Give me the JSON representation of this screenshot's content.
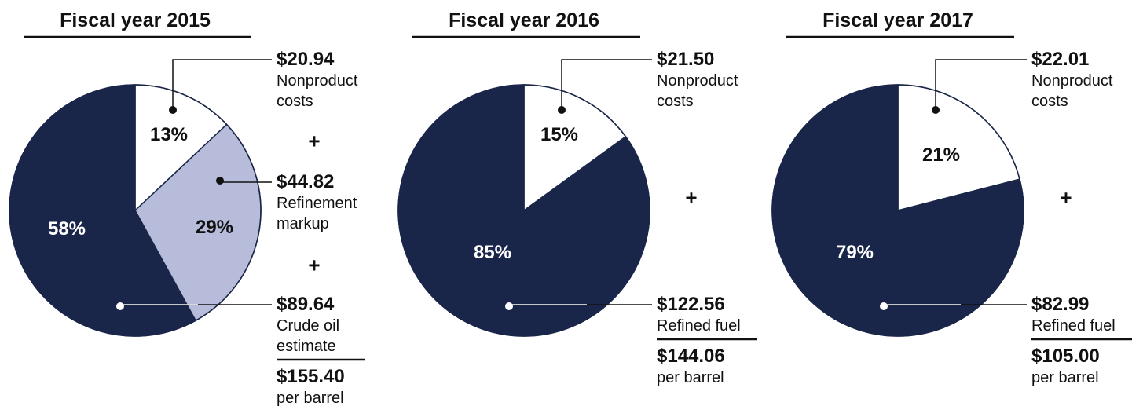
{
  "chart_data": [
    {
      "type": "pie",
      "title": "Fiscal year 2015",
      "categories": [
        "Nonproduct costs",
        "Refinement markup",
        "Crude oil estimate"
      ],
      "values": [
        13,
        29,
        58
      ],
      "value_labels": [
        "13%",
        "29%",
        "58%"
      ],
      "amounts": [
        "$20.94",
        "$44.82",
        "$89.64"
      ],
      "colors": [
        "#ffffff",
        "#b8bcdb",
        "#1a2649"
      ],
      "separator": "+",
      "total": "$155.40",
      "total_unit": "per barrel"
    },
    {
      "type": "pie",
      "title": "Fiscal year 2016",
      "categories": [
        "Nonproduct costs",
        "Refined fuel"
      ],
      "values": [
        15,
        85
      ],
      "value_labels": [
        "15%",
        "85%"
      ],
      "amounts": [
        "$21.50",
        "$122.56"
      ],
      "colors": [
        "#ffffff",
        "#1a2649"
      ],
      "separator": "+",
      "total": "$144.06",
      "total_unit": "per barrel"
    },
    {
      "type": "pie",
      "title": "Fiscal year 2017",
      "categories": [
        "Nonproduct costs",
        "Refined fuel"
      ],
      "values": [
        21,
        79
      ],
      "value_labels": [
        "21%",
        "79%"
      ],
      "amounts": [
        "$22.01",
        "$82.99"
      ],
      "colors": [
        "#ffffff",
        "#1a2649"
      ],
      "separator": "+",
      "total": "$105.00",
      "total_unit": "per barrel"
    }
  ]
}
